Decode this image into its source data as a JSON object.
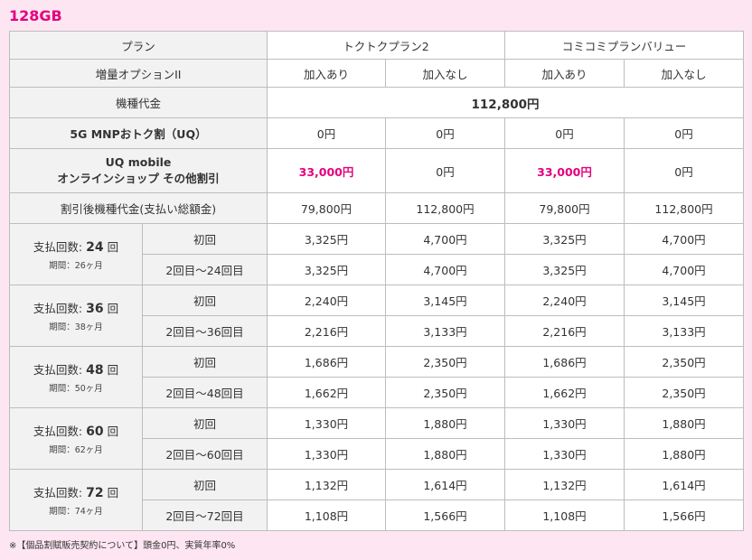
{
  "title": "128GB",
  "header": {
    "plan_label": "プラン",
    "plan1": "トクトクプラン2",
    "plan2": "コミコミプランバリュー",
    "option_label": "増量オプションII",
    "with": "加入あり",
    "without": "加入なし"
  },
  "device_price": {
    "label": "機種代金",
    "value": "112,800円"
  },
  "mnp": {
    "label": "5G MNPおトク割（UQ）",
    "values": [
      "0円",
      "0円",
      "0円",
      "0円"
    ]
  },
  "online": {
    "label_line1": "UQ mobile",
    "label_line2": "オンラインショップ その他割引",
    "values": [
      "33,000円",
      "0円",
      "33,000円",
      "0円"
    ]
  },
  "discounted": {
    "label": "割引後機種代金(支払い総額金)",
    "values": [
      "79,800円",
      "112,800円",
      "79,800円",
      "112,800円"
    ]
  },
  "installments": [
    {
      "prefix": "支払回数:",
      "count": "24",
      "suffix": "回",
      "period": "期間：26ヶ月",
      "first_label": "初回",
      "first": [
        "3,325円",
        "4,700円",
        "3,325円",
        "4,700円"
      ],
      "rest_label": "2回目〜24回目",
      "rest": [
        "3,325円",
        "4,700円",
        "3,325円",
        "4,700円"
      ]
    },
    {
      "prefix": "支払回数:",
      "count": "36",
      "suffix": "回",
      "period": "期間：38ヶ月",
      "first_label": "初回",
      "first": [
        "2,240円",
        "3,145円",
        "2,240円",
        "3,145円"
      ],
      "rest_label": "2回目〜36回目",
      "rest": [
        "2,216円",
        "3,133円",
        "2,216円",
        "3,133円"
      ]
    },
    {
      "prefix": "支払回数:",
      "count": "48",
      "suffix": "回",
      "period": "期間：50ヶ月",
      "first_label": "初回",
      "first": [
        "1,686円",
        "2,350円",
        "1,686円",
        "2,350円"
      ],
      "rest_label": "2回目〜48回目",
      "rest": [
        "1,662円",
        "2,350円",
        "1,662円",
        "2,350円"
      ]
    },
    {
      "prefix": "支払回数:",
      "count": "60",
      "suffix": "回",
      "period": "期間：62ヶ月",
      "first_label": "初回",
      "first": [
        "1,330円",
        "1,880円",
        "1,330円",
        "1,880円"
      ],
      "rest_label": "2回目〜60回目",
      "rest": [
        "1,330円",
        "1,880円",
        "1,330円",
        "1,880円"
      ]
    },
    {
      "prefix": "支払回数:",
      "count": "72",
      "suffix": "回",
      "period": "期間：74ヶ月",
      "first_label": "初回",
      "first": [
        "1,132円",
        "1,614円",
        "1,132円",
        "1,614円"
      ],
      "rest_label": "2回目〜72回目",
      "rest": [
        "1,108円",
        "1,566円",
        "1,108円",
        "1,566円"
      ]
    }
  ],
  "note": "※【個品割賦販売契約について】頭金0円、実質年率0%",
  "colors": {
    "accent": "#e4007f",
    "background": "#fde6f1",
    "label_bg": "#f2f2f2"
  }
}
